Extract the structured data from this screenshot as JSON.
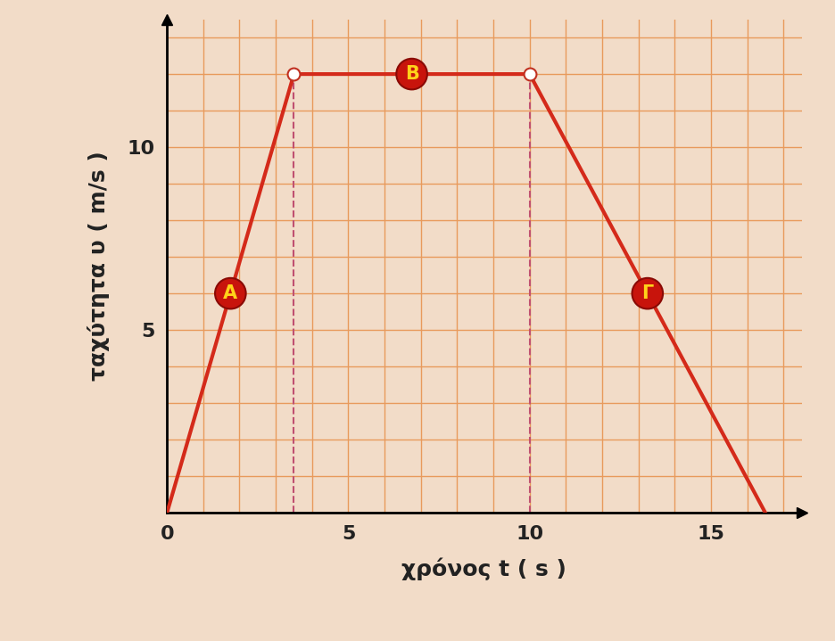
{
  "chart_data": {
    "type": "line",
    "x": [
      0,
      3.5,
      10,
      16.5
    ],
    "values": [
      0,
      12,
      12,
      0
    ],
    "xlabel": "χρόνος t ( s )",
    "ylabel": "ταχύτητα υ ( m/s )",
    "annotations": [
      "A",
      "B",
      "Γ"
    ],
    "xlim": [
      0,
      17.5
    ],
    "ylim": [
      0,
      13.5
    ],
    "xticks": [
      0,
      5,
      10,
      15
    ],
    "yticks": [
      5,
      10
    ],
    "grid": true,
    "color": "#d42a1a"
  }
}
